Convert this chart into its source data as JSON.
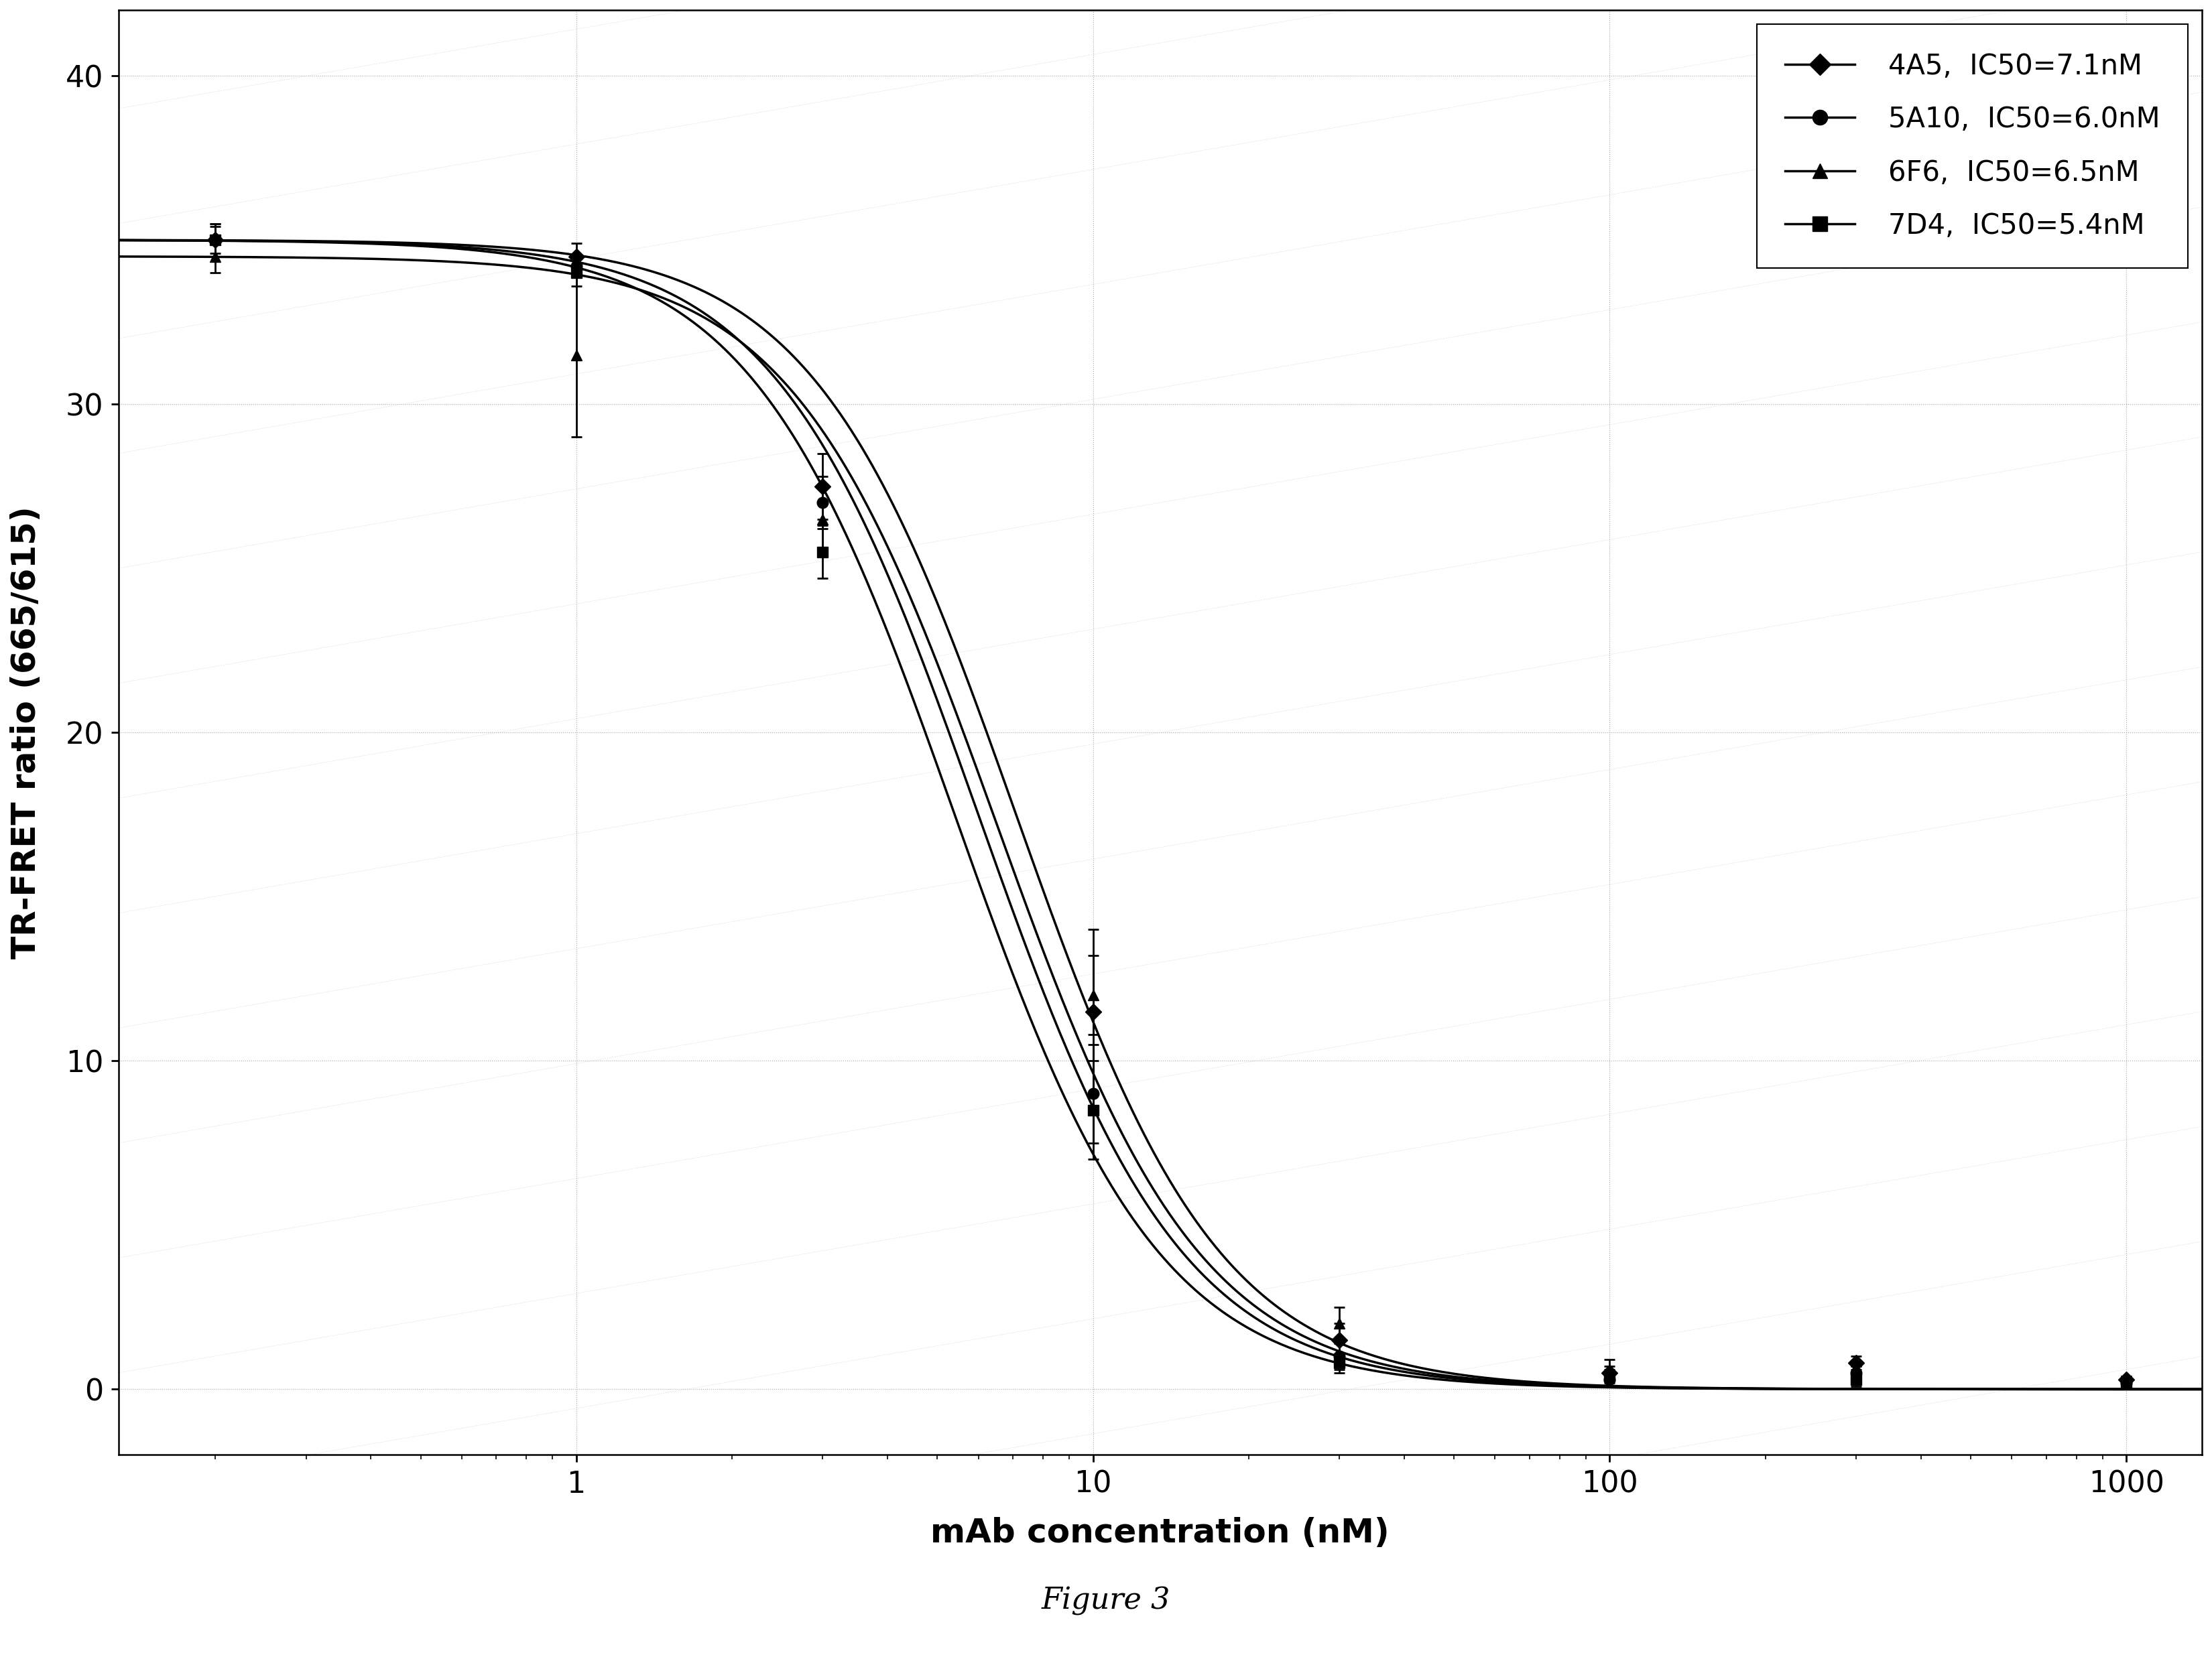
{
  "title": "",
  "xlabel": "mAb concentration (nM)",
  "ylabel": "TR-FRET ratio (665/615)",
  "figure_caption": "Figure 3",
  "xlim": [
    0.13,
    1400
  ],
  "ylim": [
    -2,
    42
  ],
  "yticks": [
    0,
    10,
    20,
    30,
    40
  ],
  "series": [
    {
      "name": "4A5",
      "ic50_label": "IC50=7.1nM",
      "ic50": 7.1,
      "top": 35.0,
      "bottom": 0.0,
      "hill": 2.2,
      "marker": "D",
      "color": "#000000",
      "markersize": 12,
      "data_x": [
        0.2,
        1.0,
        3.0,
        10.0,
        30.0,
        100.0,
        300.0,
        1000.0
      ],
      "data_y": [
        35.0,
        34.5,
        27.5,
        11.5,
        1.5,
        0.5,
        0.8,
        0.3
      ],
      "err_y": [
        0.5,
        0.4,
        1.0,
        2.5,
        0.5,
        0.2,
        0.2,
        0.1
      ]
    },
    {
      "name": "5A10",
      "ic50_label": "IC50=6.0nM",
      "ic50": 6.0,
      "top": 35.0,
      "bottom": 0.0,
      "hill": 2.2,
      "marker": "o",
      "color": "#000000",
      "markersize": 12,
      "data_x": [
        0.2,
        1.0,
        3.0,
        10.0,
        30.0,
        100.0,
        300.0,
        1000.0
      ],
      "data_y": [
        35.0,
        34.2,
        27.0,
        9.0,
        1.0,
        0.3,
        0.5,
        0.2
      ],
      "err_y": [
        0.4,
        0.3,
        0.8,
        1.5,
        0.4,
        0.2,
        0.2,
        0.1
      ]
    },
    {
      "name": "6F6",
      "ic50_label": "IC50=6.5nM",
      "ic50": 6.5,
      "top": 34.5,
      "bottom": 0.0,
      "hill": 2.2,
      "marker": "^",
      "color": "#000000",
      "markersize": 12,
      "data_x": [
        0.2,
        1.0,
        3.0,
        10.0,
        30.0,
        100.0,
        300.0,
        1000.0
      ],
      "data_y": [
        34.5,
        31.5,
        26.5,
        12.0,
        2.0,
        0.6,
        0.5,
        0.3
      ],
      "err_y": [
        0.5,
        2.5,
        1.0,
        1.2,
        0.5,
        0.3,
        0.2,
        0.1
      ]
    },
    {
      "name": "7D4",
      "ic50_label": "IC50=5.4nM",
      "ic50": 5.4,
      "top": 35.0,
      "bottom": 0.0,
      "hill": 2.2,
      "marker": "s",
      "color": "#000000",
      "markersize": 12,
      "data_x": [
        0.2,
        1.0,
        3.0,
        10.0,
        30.0,
        100.0,
        300.0,
        1000.0
      ],
      "data_y": [
        35.0,
        34.0,
        25.5,
        8.5,
        0.8,
        0.4,
        0.3,
        0.2
      ],
      "err_y": [
        0.5,
        0.4,
        0.8,
        1.5,
        0.3,
        0.2,
        0.2,
        0.1
      ]
    }
  ],
  "grid_color": "#bbbbbb",
  "background_color": "#ffffff",
  "legend_fontsize": 30,
  "axis_label_fontsize": 36,
  "tick_fontsize": 32,
  "caption_fontsize": 32,
  "line_width": 2.5
}
